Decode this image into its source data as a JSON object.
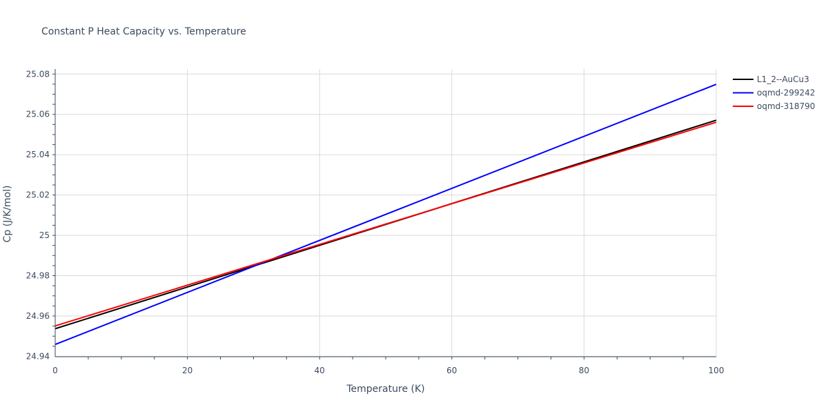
{
  "chart_data": {
    "type": "line",
    "title": "Constant P Heat Capacity vs. Temperature",
    "xlabel": "Temperature (K)",
    "ylabel": "Cp (J/K/mol)",
    "xlim": [
      0,
      100
    ],
    "ylim": [
      24.9398,
      25.0825
    ],
    "x_ticks": [
      0,
      20,
      40,
      60,
      80,
      100
    ],
    "x_tick_labels": [
      "0",
      "20",
      "40",
      "60",
      "80",
      "100"
    ],
    "y_ticks": [
      24.94,
      24.96,
      24.98,
      25.0,
      25.02,
      25.04,
      25.06,
      25.08
    ],
    "y_tick_labels": [
      "24.94",
      "24.96",
      "24.98",
      "25",
      "25.02",
      "25.04",
      "25.06",
      "25.08"
    ],
    "grid": true,
    "legend_position": "top-right",
    "series": [
      {
        "name": "L1_2--AuCu3",
        "color": "#000000",
        "x": [
          0,
          100
        ],
        "values": [
          24.9537,
          25.0571
        ]
      },
      {
        "name": "oqmd-299242",
        "color": "#0000ff",
        "x": [
          0,
          100
        ],
        "values": [
          24.9459,
          25.0749
        ]
      },
      {
        "name": "oqmd-318790",
        "color": "#ff0000",
        "x": [
          0,
          100
        ],
        "values": [
          24.9551,
          25.0561
        ]
      }
    ]
  }
}
